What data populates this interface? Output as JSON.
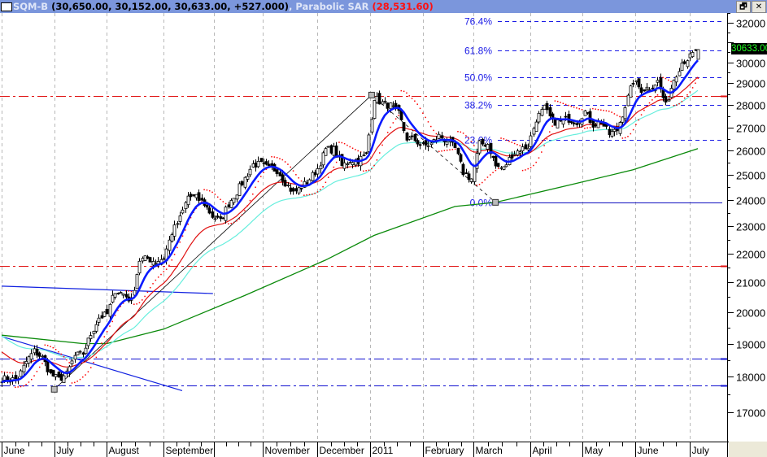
{
  "title": {
    "symbol": "SQM-B",
    "ohlc": "(30,650.00, 30,152.00, 30,633.00, +527.000)",
    "indicator": ", Parabolic SAR",
    "indicator_value": "(28,531.60)"
  },
  "window_buttons": {
    "restore": "🗗",
    "close": "✕"
  },
  "price_readout": "30633.00",
  "colors": {
    "candle": "#000000",
    "ma_fast": "#0a1aff",
    "ma_mid": "#e01010",
    "ma_slow": "#66eedd",
    "ma_long": "#0a8a0a",
    "sar": "#ff0000",
    "fib": "#1a1ae6",
    "grid": "#b8b8b8"
  },
  "chart_data": {
    "type": "candlestick",
    "title": "SQM-B",
    "scale": "log",
    "ylim": [
      16300,
      32800
    ],
    "yticks": [
      17000,
      18000,
      19000,
      20000,
      21000,
      22000,
      23000,
      24000,
      25000,
      26000,
      27000,
      28000,
      29000,
      30000,
      31000,
      32000
    ],
    "ytick_labels": [
      "17000",
      "18000",
      "19000",
      "20000",
      "21000",
      "22000",
      "23000",
      "24000",
      "25000",
      "26000",
      "27000",
      "28000",
      "29000",
      "30000",
      "31000",
      "32000"
    ],
    "months": [
      {
        "label": "June",
        "sample": 0
      },
      {
        "label": "July",
        "sample": 6.5
      },
      {
        "label": "August",
        "sample": 13
      },
      {
        "label": "September",
        "sample": 20
      },
      {
        "label": "",
        "sample": 26.2
      },
      {
        "label": "November",
        "sample": 32.3
      },
      {
        "label": "December",
        "sample": 39
      },
      {
        "label": "2011",
        "sample": 45.5
      },
      {
        "label": "February",
        "sample": 52
      },
      {
        "label": "March",
        "sample": 58.3
      },
      {
        "label": "April",
        "sample": 65.3
      },
      {
        "label": "May",
        "sample": 71.7
      },
      {
        "label": "June",
        "sample": 78.3
      },
      {
        "label": "July",
        "sample": 85
      }
    ],
    "closes": [
      17960,
      17910,
      17960,
      18450,
      18770,
      18570,
      18080,
      17930,
      18080,
      18620,
      18700,
      19290,
      19820,
      19930,
      20720,
      20590,
      20360,
      21760,
      21820,
      21700,
      21850,
      22750,
      23280,
      24140,
      24080,
      23850,
      23370,
      23180,
      23850,
      24310,
      24850,
      25420,
      25420,
      25250,
      25190,
      24690,
      24270,
      24500,
      24830,
      25250,
      26040,
      26040,
      25350,
      25590,
      25590,
      25830,
      28340,
      28080,
      27960,
      27600,
      26520,
      26450,
      26180,
      26280,
      26620,
      26420,
      26080,
      25090,
      24830,
      26280,
      26280,
      25350,
      25250,
      25830,
      26040,
      26180,
      27370,
      27850,
      27240,
      27240,
      27370,
      27240,
      27700,
      27120,
      27240,
      26700,
      26880,
      27960,
      29090,
      28700,
      28820,
      29090,
      27960,
      29210,
      30000,
      30270,
      30633
    ],
    "ma_fast_period": 6,
    "ma_mid": {
      "period": 25,
      "seed": 18820
    },
    "ma_slow": {
      "period": 45,
      "seed": 19300
    },
    "ma_long_points": [
      [
        0,
        19260
      ],
      [
        10,
        19000
      ],
      [
        13,
        19000
      ],
      [
        20,
        19450
      ],
      [
        30,
        20540
      ],
      [
        40,
        21760
      ],
      [
        46,
        22650
      ],
      [
        56,
        23740
      ],
      [
        61,
        23900
      ],
      [
        70,
        24570
      ],
      [
        78,
        25200
      ],
      [
        86,
        26080
      ]
    ],
    "fib_levels": [
      {
        "label": "76.4%",
        "price": 32100
      },
      {
        "label": "61.8%",
        "price": 30600
      },
      {
        "label": "50.0%",
        "price": 29300
      },
      {
        "label": "38.2%",
        "price": 28000
      },
      {
        "label": "23.6%",
        "price": 26450
      },
      {
        "label": "0.0%",
        "price": 23900
      }
    ],
    "horizontal_lines": [
      {
        "price": 28400,
        "color": "#e01010",
        "style": "dashdot"
      },
      {
        "price": 21560,
        "color": "#e01010",
        "style": "dashdot"
      },
      {
        "price": 18540,
        "color": "#1010d0",
        "style": "dashdot"
      },
      {
        "price": 17750,
        "color": "#1010d0",
        "style": "dashdot"
      }
    ],
    "trendlines": [
      {
        "from": [
          0,
          20860
        ],
        "to": [
          26.1,
          20610
        ],
        "color": "#1020e0",
        "dash": false
      },
      {
        "from": [
          0,
          19220
        ],
        "to": [
          22.3,
          17600
        ],
        "color": "#1020e0",
        "dash": false
      },
      {
        "from": [
          6.5,
          17640
        ],
        "to": [
          45.7,
          28450
        ],
        "color": "#000000",
        "dash": false
      },
      {
        "from": [
          45.7,
          28450
        ],
        "to": [
          61,
          23900
        ],
        "color": "#000000",
        "dash": true
      }
    ],
    "markers": [
      [
        6.5,
        17640
      ],
      [
        45.7,
        28450
      ],
      [
        61,
        23900
      ]
    ],
    "last_close": 30633,
    "sar_last": 28531.6
  }
}
